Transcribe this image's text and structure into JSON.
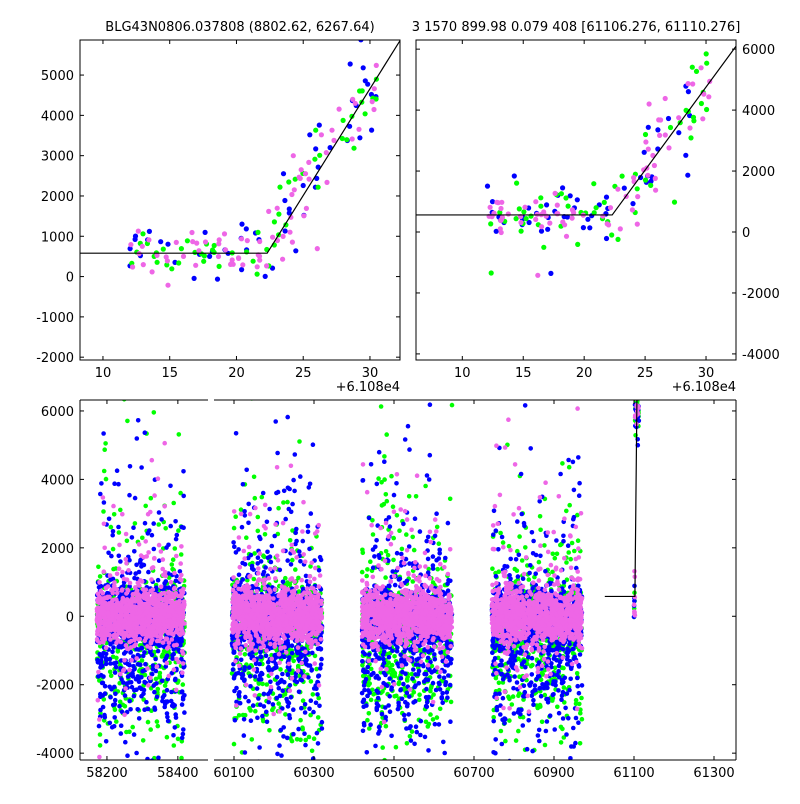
{
  "chart_data": [
    {
      "id": "top-left",
      "type": "scatter",
      "title": "BLG43N0806.037808 (8802.62, 6267.64)",
      "xlim": [
        8.28,
        32.25
      ],
      "ylim": [
        -2070,
        5870
      ],
      "xticks": [
        10,
        15,
        20,
        25,
        30
      ],
      "yticks": [
        -2000,
        -1000,
        0,
        1000,
        2000,
        3000,
        4000,
        5000
      ],
      "ytick_side": "left",
      "x_offset_label": "+6.108e4",
      "model": {
        "baseline": 580,
        "t_break": 22.3,
        "slope": 530
      },
      "series": [
        {
          "name": "blue",
          "color": "#0000ff",
          "n": 55,
          "noise": 550
        },
        {
          "name": "green",
          "color": "#00ff00",
          "n": 55,
          "noise": 450
        },
        {
          "name": "pink",
          "color": "#ee66e6",
          "n": 75,
          "noise": 380
        }
      ],
      "grid": false
    },
    {
      "id": "top-right",
      "type": "scatter",
      "title": "3 1570 899.98 0.079 408 [61106.276, 61110.276]",
      "xlim": [
        6.2,
        32.46
      ],
      "ylim": [
        -4200,
        6300
      ],
      "xticks": [
        10,
        15,
        20,
        25,
        30
      ],
      "yticks": [
        -4000,
        -2000,
        0,
        2000,
        4000,
        6000
      ],
      "ytick_side": "right",
      "x_offset_label": "+6.108e4",
      "model": {
        "baseline": 560,
        "t_break": 22.3,
        "slope": 545
      },
      "series": [
        {
          "name": "blue",
          "color": "#0000ff",
          "n": 55,
          "noise": 700
        },
        {
          "name": "green",
          "color": "#00ff00",
          "n": 55,
          "noise": 600
        },
        {
          "name": "pink",
          "color": "#ee66e6",
          "n": 75,
          "noise": 450
        }
      ],
      "grid": false
    },
    {
      "id": "bottom",
      "type": "scatter",
      "title": "",
      "broken_x": true,
      "xlim_left": [
        58124,
        58485
      ],
      "xlim_right": [
        60050,
        61355
      ],
      "ylim": [
        -4200,
        6320
      ],
      "xticks_left": [
        58200,
        58400
      ],
      "xticks_right": [
        60100,
        60300,
        60500,
        60700,
        60900,
        61100,
        61300
      ],
      "yticks": [
        -4000,
        -2000,
        0,
        2000,
        4000,
        6000
      ],
      "seasons": [
        {
          "start": 58172,
          "end": 58419,
          "panel": "left"
        },
        {
          "start": 60095,
          "end": 60320,
          "panel": "right"
        },
        {
          "start": 60420,
          "end": 60645,
          "panel": "right"
        },
        {
          "start": 60745,
          "end": 60970,
          "panel": "right"
        }
      ],
      "event": {
        "start": 61100,
        "end": 61112
      },
      "model_segment": {
        "t_start": 61027,
        "t_break": 61102.3,
        "baseline": 580,
        "slope": 530
      },
      "series": [
        {
          "name": "green",
          "color": "#00ff00",
          "n_per_season": 700
        },
        {
          "name": "blue",
          "color": "#0000ff",
          "n_per_season": 900
        },
        {
          "name": "pink",
          "color": "#ee66e6",
          "n_per_season": 1100
        }
      ],
      "grid": false
    }
  ]
}
